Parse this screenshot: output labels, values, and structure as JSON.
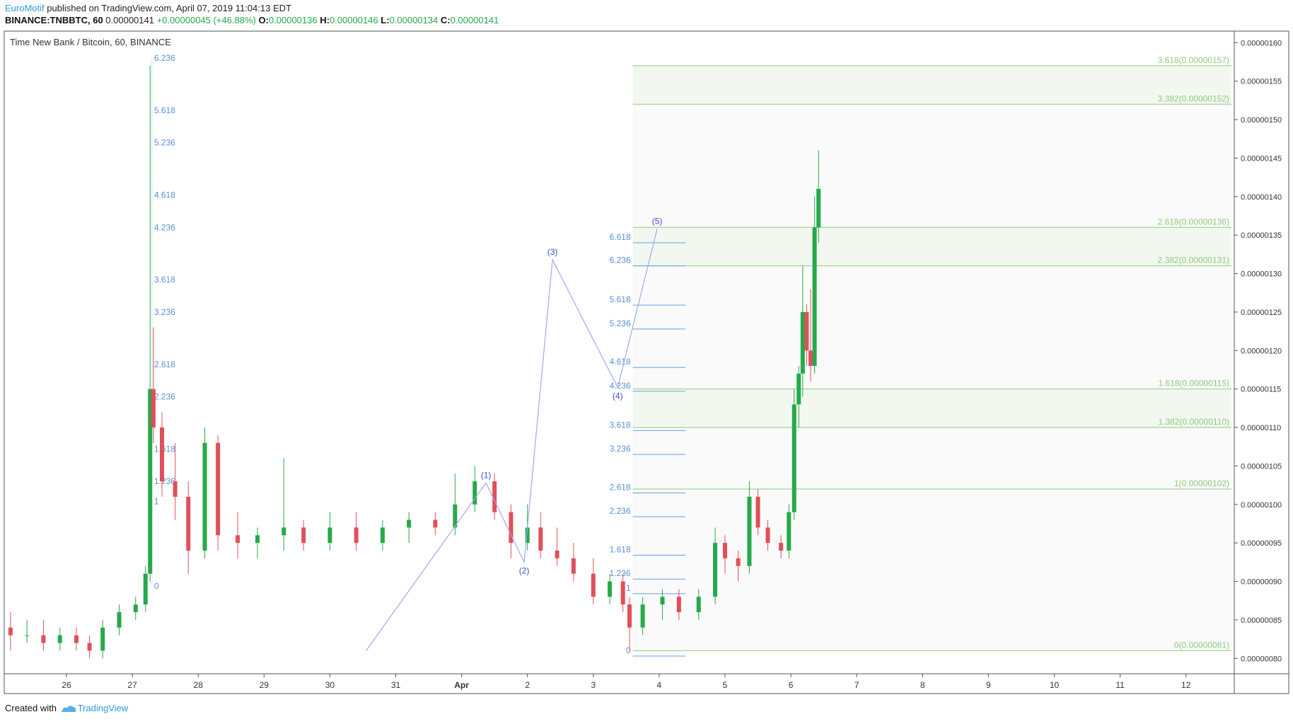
{
  "header": {
    "author": "EuroMotif",
    "published_text": "published on TradingView.com, April 07, 2019 11:04:13 EDT",
    "symbol": "BINANCE:TNBBTC, 60",
    "last": "0.00000141",
    "change": "+0.00000045 (+46.88%)",
    "o_label": "O:",
    "o_value": "0.00000136",
    "h_label": "H:",
    "h_value": "0.00000146",
    "l_label": "L:",
    "l_value": "0.00000134",
    "c_label": "C:",
    "c_value": "0.00000141"
  },
  "footer": {
    "created_with": "Created with",
    "brand": "TradingView"
  },
  "colors": {
    "up": "#26a94a",
    "down": "#e0505a",
    "fib_line": "#8fca7e",
    "fib_text": "#8fca7e",
    "ext_text": "#5a8fd6",
    "ext_line": "#6a9ee0",
    "wave": "#9fa8f0",
    "wave_text": "#3b4fc8",
    "axis_text": "#333333",
    "border": "#555555"
  },
  "chart_data": {
    "type": "candlestick",
    "title": "Time New Bank / Bitcoin, 60, BINANCE",
    "ylim": [
      7.8e-07,
      1.615e-06
    ],
    "y_ticks": [
      "0.00000080",
      "0.00000085",
      "0.00000090",
      "0.00000095",
      "0.00000100",
      "0.00000105",
      "0.00000110",
      "0.00000115",
      "0.00000120",
      "0.00000125",
      "0.00000130",
      "0.00000135",
      "0.00000140",
      "0.00000145",
      "0.00000150",
      "0.00000155",
      "0.00000160"
    ],
    "x_ticks": [
      "26",
      "27",
      "28",
      "29",
      "30",
      "31",
      "Apr",
      "2",
      "3",
      "4",
      "5",
      "6",
      "7",
      "8",
      "9",
      "10",
      "11",
      "12"
    ],
    "fib_retracement": [
      {
        "label": "3.618(0.00000157)",
        "value": 1.57e-06
      },
      {
        "label": "3.382(0.00000152)",
        "value": 1.52e-06
      },
      {
        "label": "2.618(0.00000136)",
        "value": 1.36e-06
      },
      {
        "label": "2.382(0.00000131)",
        "value": 1.31e-06
      },
      {
        "label": "1.618(0.00000115)",
        "value": 1.15e-06
      },
      {
        "label": "1.382(0.00000110)",
        "value": 1.1e-06
      },
      {
        "label": "1(0.00000102)",
        "value": 1.02e-06
      },
      {
        "label": "0(0.00000081)",
        "value": 8.1e-07
      }
    ],
    "fib_extension_right": [
      {
        "label": "6.618",
        "value": 1.34e-06
      },
      {
        "label": "6.236",
        "value": 1.31e-06
      },
      {
        "label": "5.618",
        "value": 1.259e-06
      },
      {
        "label": "5.236",
        "value": 1.228e-06
      },
      {
        "label": "4.618",
        "value": 1.178e-06
      },
      {
        "label": "4.236",
        "value": 1.147e-06
      },
      {
        "label": "3.618",
        "value": 1.096e-06
      },
      {
        "label": "3.236",
        "value": 1.065e-06
      },
      {
        "label": "2.618",
        "value": 1.015e-06
      },
      {
        "label": "2.236",
        "value": 9.84e-07
      },
      {
        "label": "1.618",
        "value": 9.34e-07
      },
      {
        "label": "1.236",
        "value": 9.03e-07
      },
      {
        "label": "1",
        "value": 8.84e-07
      },
      {
        "label": "0",
        "value": 8.03e-07
      }
    ],
    "fib_extension_left": [
      {
        "label": "6.236",
        "value": 1.58e-06
      },
      {
        "label": "5.618",
        "value": 1.512e-06
      },
      {
        "label": "5.236",
        "value": 1.47e-06
      },
      {
        "label": "4.618",
        "value": 1.402e-06
      },
      {
        "label": "4.236",
        "value": 1.36e-06
      },
      {
        "label": "3.618",
        "value": 1.292e-06
      },
      {
        "label": "3.236",
        "value": 1.25e-06
      },
      {
        "label": "2.618",
        "value": 1.182e-06
      },
      {
        "label": "2.236",
        "value": 1.14e-06
      },
      {
        "label": "1.618",
        "value": 1.072e-06
      },
      {
        "label": "1.236",
        "value": 1.03e-06
      },
      {
        "label": "1",
        "value": 1.004e-06
      },
      {
        "label": "0",
        "value": 8.94e-07
      }
    ],
    "elliott_waves": [
      {
        "label": "",
        "day": 4.55,
        "value": 8.1e-07
      },
      {
        "label": "(1)",
        "day": 6.37,
        "value": 1.028e-06
      },
      {
        "label": "(2)",
        "day": 6.95,
        "value": 9.25e-07
      },
      {
        "label": "(3)",
        "day": 7.38,
        "value": 1.318e-06
      },
      {
        "label": "(4)",
        "day": 8.37,
        "value": 1.152e-06
      },
      {
        "label": "(5)",
        "day": 8.97,
        "value": 1.358e-06
      }
    ],
    "candles": [
      {
        "day": -0.85,
        "o": 8.4e-07,
        "h": 8.6e-07,
        "l": 8.1e-07,
        "c": 8.3e-07
      },
      {
        "day": -0.6,
        "o": 8.3e-07,
        "h": 8.5e-07,
        "l": 8.2e-07,
        "c": 8.3e-07
      },
      {
        "day": -0.35,
        "o": 8.3e-07,
        "h": 8.5e-07,
        "l": 8.1e-07,
        "c": 8.2e-07
      },
      {
        "day": -0.1,
        "o": 8.2e-07,
        "h": 8.4e-07,
        "l": 8.1e-07,
        "c": 8.3e-07
      },
      {
        "day": 0.15,
        "o": 8.3e-07,
        "h": 8.4e-07,
        "l": 8.1e-07,
        "c": 8.2e-07
      },
      {
        "day": 0.35,
        "o": 8.2e-07,
        "h": 8.3e-07,
        "l": 8e-07,
        "c": 8.1e-07
      },
      {
        "day": 0.55,
        "o": 8.1e-07,
        "h": 8.5e-07,
        "l": 8e-07,
        "c": 8.4e-07
      },
      {
        "day": 0.8,
        "o": 8.4e-07,
        "h": 8.7e-07,
        "l": 8.3e-07,
        "c": 8.6e-07
      },
      {
        "day": 1.05,
        "o": 8.6e-07,
        "h": 8.8e-07,
        "l": 8.5e-07,
        "c": 8.7e-07
      },
      {
        "day": 1.2,
        "o": 8.7e-07,
        "h": 9.2e-07,
        "l": 8.6e-07,
        "c": 9.1e-07
      },
      {
        "day": 1.27,
        "o": 9.1e-07,
        "h": 1.57e-06,
        "l": 9e-07,
        "c": 1.15e-06
      },
      {
        "day": 1.32,
        "o": 1.15e-06,
        "h": 1.23e-06,
        "l": 1.08e-06,
        "c": 1.1e-06
      },
      {
        "day": 1.45,
        "o": 1.1e-06,
        "h": 1.12e-06,
        "l": 1.01e-06,
        "c": 1.03e-06
      },
      {
        "day": 1.65,
        "o": 1.03e-06,
        "h": 1.08e-06,
        "l": 9.8e-07,
        "c": 1.01e-06
      },
      {
        "day": 1.85,
        "o": 1.01e-06,
        "h": 1.03e-06,
        "l": 9.1e-07,
        "c": 9.4e-07
      },
      {
        "day": 2.1,
        "o": 9.4e-07,
        "h": 1.1e-06,
        "l": 9.3e-07,
        "c": 1.08e-06
      },
      {
        "day": 2.3,
        "o": 1.08e-06,
        "h": 1.09e-06,
        "l": 9.4e-07,
        "c": 9.6e-07
      },
      {
        "day": 2.6,
        "o": 9.6e-07,
        "h": 9.9e-07,
        "l": 9.3e-07,
        "c": 9.5e-07
      },
      {
        "day": 2.9,
        "o": 9.5e-07,
        "h": 9.7e-07,
        "l": 9.3e-07,
        "c": 9.6e-07
      },
      {
        "day": 3.3,
        "o": 9.6e-07,
        "h": 1.06e-06,
        "l": 9.4e-07,
        "c": 9.7e-07
      },
      {
        "day": 3.6,
        "o": 9.7e-07,
        "h": 9.8e-07,
        "l": 9.4e-07,
        "c": 9.5e-07
      },
      {
        "day": 4.0,
        "o": 9.5e-07,
        "h": 9.9e-07,
        "l": 9.4e-07,
        "c": 9.7e-07
      },
      {
        "day": 4.4,
        "o": 9.7e-07,
        "h": 9.9e-07,
        "l": 9.4e-07,
        "c": 9.5e-07
      },
      {
        "day": 4.8,
        "o": 9.5e-07,
        "h": 9.8e-07,
        "l": 9.4e-07,
        "c": 9.7e-07
      },
      {
        "day": 5.2,
        "o": 9.7e-07,
        "h": 9.9e-07,
        "l": 9.5e-07,
        "c": 9.8e-07
      },
      {
        "day": 5.6,
        "o": 9.8e-07,
        "h": 9.9e-07,
        "l": 9.6e-07,
        "c": 9.7e-07
      },
      {
        "day": 5.9,
        "o": 9.7e-07,
        "h": 1.04e-06,
        "l": 9.6e-07,
        "c": 1e-06
      },
      {
        "day": 6.2,
        "o": 1e-06,
        "h": 1.05e-06,
        "l": 9.9e-07,
        "c": 1.03e-06
      },
      {
        "day": 6.5,
        "o": 1.03e-06,
        "h": 1.04e-06,
        "l": 9.8e-07,
        "c": 9.9e-07
      },
      {
        "day": 6.75,
        "o": 9.9e-07,
        "h": 1e-06,
        "l": 9.3e-07,
        "c": 9.5e-07
      },
      {
        "day": 7.0,
        "o": 9.5e-07,
        "h": 1e-06,
        "l": 9.4e-07,
        "c": 9.7e-07
      },
      {
        "day": 7.2,
        "o": 9.7e-07,
        "h": 9.9e-07,
        "l": 9.3e-07,
        "c": 9.4e-07
      },
      {
        "day": 7.45,
        "o": 9.4e-07,
        "h": 9.7e-07,
        "l": 9.2e-07,
        "c": 9.3e-07
      },
      {
        "day": 7.7,
        "o": 9.3e-07,
        "h": 9.5e-07,
        "l": 9e-07,
        "c": 9.1e-07
      },
      {
        "day": 8.0,
        "o": 9.1e-07,
        "h": 9.3e-07,
        "l": 8.7e-07,
        "c": 8.8e-07
      },
      {
        "day": 8.25,
        "o": 8.8e-07,
        "h": 9.1e-07,
        "l": 8.7e-07,
        "c": 9e-07
      },
      {
        "day": 8.45,
        "o": 9e-07,
        "h": 9.1e-07,
        "l": 8.6e-07,
        "c": 8.7e-07
      },
      {
        "day": 8.55,
        "o": 8.7e-07,
        "h": 8.8e-07,
        "l": 8.1e-07,
        "c": 8.4e-07
      },
      {
        "day": 8.75,
        "o": 8.4e-07,
        "h": 8.8e-07,
        "l": 8.3e-07,
        "c": 8.7e-07
      },
      {
        "day": 9.05,
        "o": 8.7e-07,
        "h": 8.9e-07,
        "l": 8.5e-07,
        "c": 8.8e-07
      },
      {
        "day": 9.3,
        "o": 8.8e-07,
        "h": 8.9e-07,
        "l": 8.5e-07,
        "c": 8.6e-07
      },
      {
        "day": 9.6,
        "o": 8.6e-07,
        "h": 8.9e-07,
        "l": 8.5e-07,
        "c": 8.8e-07
      },
      {
        "day": 9.85,
        "o": 8.8e-07,
        "h": 9.7e-07,
        "l": 8.7e-07,
        "c": 9.5e-07
      },
      {
        "day": 10.0,
        "o": 9.5e-07,
        "h": 9.6e-07,
        "l": 9.1e-07,
        "c": 9.3e-07
      },
      {
        "day": 10.2,
        "o": 9.3e-07,
        "h": 9.4e-07,
        "l": 9e-07,
        "c": 9.2e-07
      },
      {
        "day": 10.37,
        "o": 9.2e-07,
        "h": 1.03e-06,
        "l": 9.1e-07,
        "c": 1.01e-06
      },
      {
        "day": 10.5,
        "o": 1.01e-06,
        "h": 1.02e-06,
        "l": 9.6e-07,
        "c": 9.7e-07
      },
      {
        "day": 10.65,
        "o": 9.7e-07,
        "h": 9.8e-07,
        "l": 9.4e-07,
        "c": 9.5e-07
      },
      {
        "day": 10.85,
        "o": 9.5e-07,
        "h": 9.6e-07,
        "l": 9.3e-07,
        "c": 9.4e-07
      },
      {
        "day": 10.97,
        "o": 9.4e-07,
        "h": 1e-06,
        "l": 9.3e-07,
        "c": 9.9e-07
      },
      {
        "day": 11.05,
        "o": 9.9e-07,
        "h": 1.15e-06,
        "l": 9.8e-07,
        "c": 1.13e-06
      },
      {
        "day": 11.12,
        "o": 1.13e-06,
        "h": 1.18e-06,
        "l": 1.1e-06,
        "c": 1.17e-06
      },
      {
        "day": 11.18,
        "o": 1.17e-06,
        "h": 1.31e-06,
        "l": 1.14e-06,
        "c": 1.25e-06
      },
      {
        "day": 11.24,
        "o": 1.25e-06,
        "h": 1.26e-06,
        "l": 1.18e-06,
        "c": 1.2e-06
      },
      {
        "day": 11.3,
        "o": 1.2e-06,
        "h": 1.28e-06,
        "l": 1.16e-06,
        "c": 1.18e-06
      },
      {
        "day": 11.36,
        "o": 1.18e-06,
        "h": 1.4e-06,
        "l": 1.17e-06,
        "c": 1.36e-06
      },
      {
        "day": 11.42,
        "o": 1.36e-06,
        "h": 1.46e-06,
        "l": 1.34e-06,
        "c": 1.41e-06
      }
    ]
  }
}
